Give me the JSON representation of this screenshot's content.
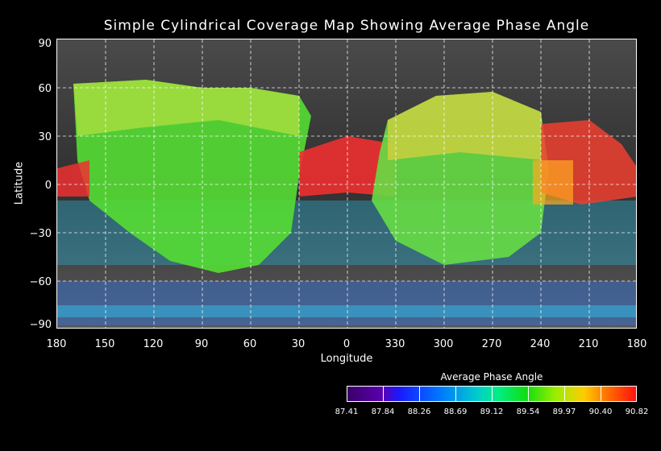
{
  "title": "Simple Cylindrical Coverage Map Showing Average Phase Angle",
  "axes": {
    "ylabel": "Latitude",
    "xlabel": "Longitude",
    "yticks": [
      "90",
      "60",
      "30",
      "0",
      "−30",
      "−60",
      "−90"
    ],
    "xticks": [
      "180",
      "150",
      "120",
      "90",
      "60",
      "30",
      "0",
      "330",
      "300",
      "270",
      "240",
      "210",
      "180"
    ]
  },
  "colorbar": {
    "title": "Average Phase Angle",
    "labels": [
      "87.41",
      "87.84",
      "88.26",
      "88.69",
      "89.12",
      "89.54",
      "89.97",
      "90.40",
      "90.82"
    ]
  },
  "colors": {
    "background": "#000000",
    "grid": "#ffffff",
    "basemap": "#3a3a3a"
  }
}
